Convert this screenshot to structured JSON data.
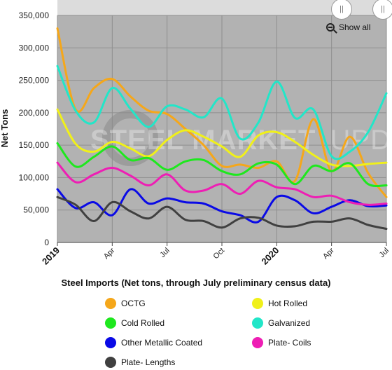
{
  "chart_data": {
    "type": "line",
    "title": "Steel Imports (Net tons, through July preliminary census data)",
    "ylabel": "Net Tons",
    "xlabel": "",
    "ylim": [
      0,
      350000
    ],
    "yticks": [
      0,
      50000,
      100000,
      150000,
      200000,
      250000,
      300000,
      350000
    ],
    "ytick_labels": [
      "0",
      "50,000",
      "100,000",
      "150,000",
      "200,000",
      "250,000",
      "300,000",
      "350,000"
    ],
    "x_range": [
      "2019-01",
      "2020-07"
    ],
    "x": [
      "2019-01",
      "2019-02",
      "2019-03",
      "2019-04",
      "2019-05",
      "2019-06",
      "2019-07",
      "2019-08",
      "2019-09",
      "2019-10",
      "2019-11",
      "2019-12",
      "2020-01",
      "2020-02",
      "2020-03",
      "2020-04",
      "2020-05",
      "2020-06",
      "2020-07"
    ],
    "xticks": [
      {
        "date": "2019-01",
        "label": "2019",
        "bold": true
      },
      {
        "date": "2019-04",
        "label": "Apr",
        "bold": false
      },
      {
        "date": "2019-07",
        "label": "Jul",
        "bold": false
      },
      {
        "date": "2019-10",
        "label": "Oct",
        "bold": false
      },
      {
        "date": "2020-01",
        "label": "2020",
        "bold": true
      },
      {
        "date": "2020-04",
        "label": "Apr",
        "bold": false
      },
      {
        "date": "2020-07",
        "label": "Jul",
        "bold": false
      }
    ],
    "grid": true,
    "legend_position": "bottom",
    "series": [
      {
        "name": "OCTG",
        "color": "#f5a71a",
        "values": [
          330000,
          205000,
          238000,
          252000,
          225000,
          203000,
          198000,
          175000,
          150000,
          118000,
          120000,
          115000,
          125000,
          95000,
          190000,
          110000,
          163000,
          107000,
          70000
        ]
      },
      {
        "name": "Hot Rolled",
        "color": "#f0f01a",
        "values": [
          205000,
          152000,
          140000,
          155000,
          145000,
          133000,
          158000,
          173000,
          163000,
          148000,
          132000,
          165000,
          170000,
          155000,
          135000,
          120000,
          118000,
          121000,
          123000
        ]
      },
      {
        "name": "Cold Rolled",
        "color": "#1ee81e",
        "values": [
          153000,
          117000,
          132000,
          148000,
          127000,
          130000,
          112000,
          125000,
          127000,
          110000,
          105000,
          122000,
          120000,
          90000,
          118000,
          110000,
          122000,
          90000,
          88000
        ]
      },
      {
        "name": "Galvanized",
        "color": "#22e6c8",
        "values": [
          272000,
          203000,
          185000,
          238000,
          206000,
          178000,
          210000,
          205000,
          193000,
          222000,
          160000,
          185000,
          248000,
          192000,
          205000,
          133000,
          140000,
          170000,
          230000
        ]
      },
      {
        "name": "Other Metallic Coated",
        "color": "#0a0ae6",
        "values": [
          82000,
          53000,
          62000,
          42000,
          82000,
          60000,
          68000,
          62000,
          60000,
          48000,
          42000,
          32000,
          70000,
          65000,
          45000,
          55000,
          65000,
          56000,
          57000
        ]
      },
      {
        "name": "Plate- Coils",
        "color": "#ee1eb4",
        "values": [
          123000,
          93000,
          105000,
          115000,
          103000,
          88000,
          105000,
          80000,
          80000,
          90000,
          75000,
          95000,
          85000,
          82000,
          70000,
          72000,
          62000,
          58000,
          60000
        ]
      },
      {
        "name": "Plate- Lengths",
        "color": "#404040",
        "values": [
          70000,
          58000,
          33000,
          62000,
          48000,
          37000,
          55000,
          35000,
          33000,
          23000,
          37000,
          38000,
          26000,
          25000,
          32000,
          32000,
          37000,
          27000,
          21000
        ]
      }
    ]
  },
  "watermark": {
    "part1": "STEEL MARKET",
    "part2": "UPDATE"
  },
  "controls": {
    "show_all_label": "Show all",
    "handle_left_glyph": "||",
    "handle_right_glyph": "||"
  }
}
